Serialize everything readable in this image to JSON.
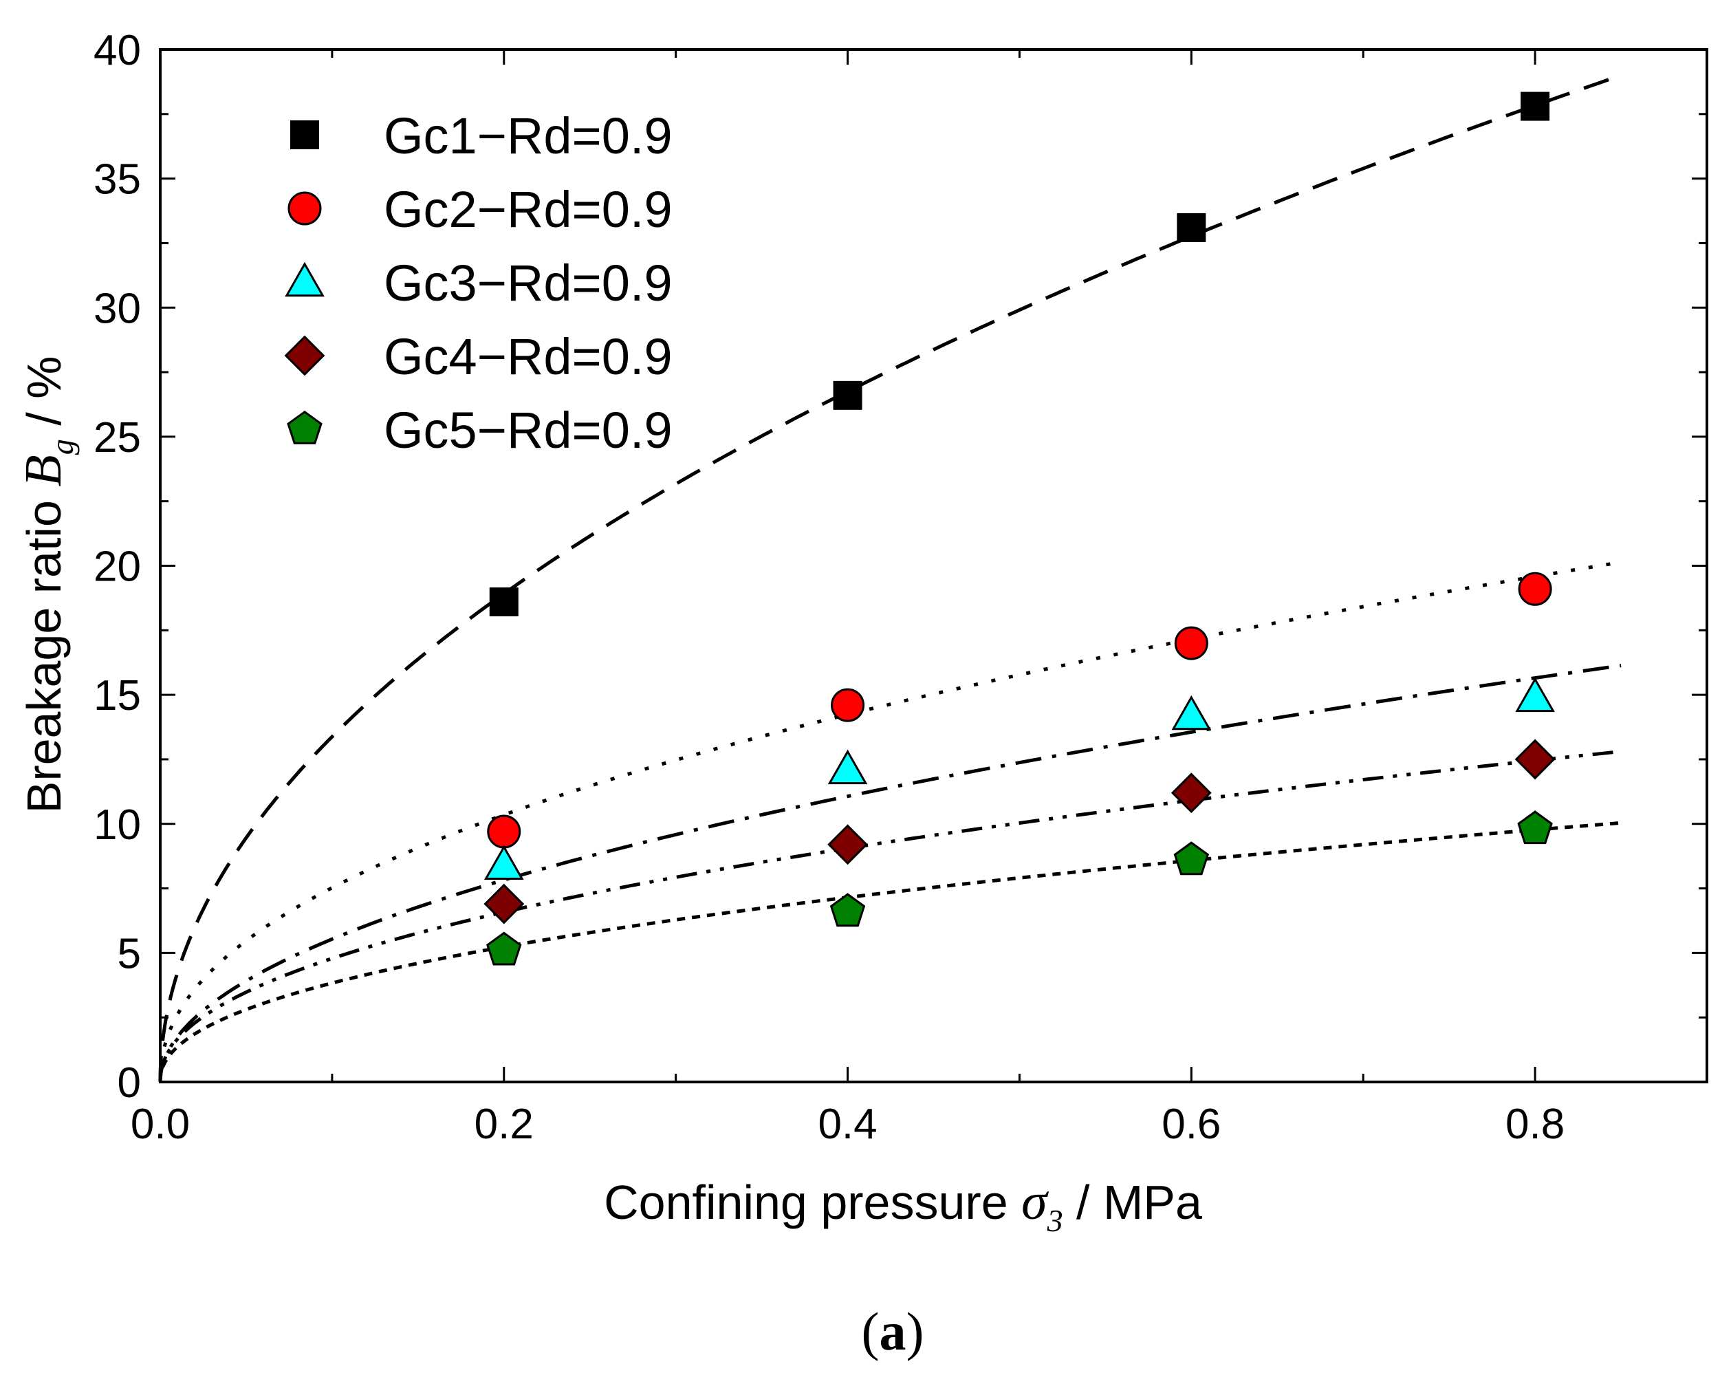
{
  "chart_data": {
    "type": "scatter",
    "title": "",
    "caption": {
      "open": "(",
      "letter": "a",
      "close": ")"
    },
    "xlabel": {
      "text": "Confining pressure ",
      "symbol": "σ",
      "subscript": "3",
      "unit": " / MPa"
    },
    "ylabel": {
      "text": "Breakage ratio ",
      "symbol": "B",
      "subscript": "g",
      "unit": " / %"
    },
    "xlim": [
      0.0,
      0.9
    ],
    "ylim": [
      0,
      40
    ],
    "xticks": [
      0.0,
      0.2,
      0.4,
      0.6,
      0.8
    ],
    "xtick_labels": [
      "0.0",
      "0.2",
      "0.4",
      "0.6",
      "0.8"
    ],
    "yticks": [
      0,
      5,
      10,
      15,
      20,
      25,
      30,
      35,
      40
    ],
    "ytick_labels": [
      "0",
      "5",
      "10",
      "15",
      "20",
      "25",
      "30",
      "35",
      "40"
    ],
    "grid": false,
    "legend_position": "top-left",
    "fit": {
      "form": "power",
      "x_end": 0.85
    },
    "series": [
      {
        "name": "Gc1−Rd=0.9",
        "marker": "square",
        "color": "#000000",
        "line": "dash",
        "x": [
          0.2,
          0.4,
          0.6,
          0.8
        ],
        "values": [
          18.6,
          26.6,
          33.1,
          37.8
        ],
        "fit_a": 42.3,
        "fit_b": 0.5
      },
      {
        "name": "Gc2−Rd=0.9",
        "marker": "circle",
        "color": "#ff0000",
        "line": "dot",
        "x": [
          0.2,
          0.4,
          0.6,
          0.8
        ],
        "values": [
          9.7,
          14.6,
          17.0,
          19.1
        ],
        "fit_a": 21.7,
        "fit_b": 0.46
      },
      {
        "name": "Gc3−Rd=0.9",
        "marker": "triangle",
        "color": "#00ffff",
        "line": "dashdot",
        "x": [
          0.2,
          0.4,
          0.6,
          0.8
        ],
        "values": [
          8.4,
          12.1,
          14.2,
          14.9
        ],
        "fit_a": 17.5,
        "fit_b": 0.5
      },
      {
        "name": "Gc4−Rd=0.9",
        "marker": "diamond",
        "color": "#7f0000",
        "line": "dashdotdot",
        "x": [
          0.2,
          0.4,
          0.6,
          0.8
        ],
        "values": [
          6.9,
          9.2,
          11.2,
          12.5
        ],
        "fit_a": 13.8,
        "fit_b": 0.46
      },
      {
        "name": "Gc5−Rd=0.9",
        "marker": "pentagon",
        "color": "#008000",
        "line": "shortdash",
        "x": [
          0.2,
          0.4,
          0.6,
          0.8
        ],
        "values": [
          5.1,
          6.6,
          8.6,
          9.8
        ],
        "fit_a": 10.8,
        "fit_b": 0.45
      }
    ]
  }
}
